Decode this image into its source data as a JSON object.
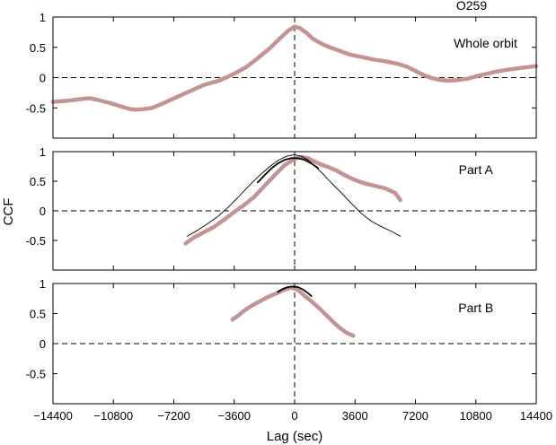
{
  "figure": {
    "title": "O259",
    "xlabel": "Lag (sec)",
    "ylabel": "CCF"
  },
  "chart_data": [
    {
      "type": "line",
      "panel_label": "Whole orbit",
      "xlim": [
        -14400,
        14400
      ],
      "ylim": [
        -1,
        1
      ],
      "xticks": [
        -14400,
        -10800,
        -7200,
        -3600,
        0,
        3600,
        7200,
        10800,
        14400
      ],
      "yticks": [
        -0.5,
        0,
        0.5,
        1
      ],
      "ytick_labels": [
        "-0.5",
        "0",
        "0.5",
        "1"
      ],
      "grid": false,
      "zero_lines": true,
      "series": [
        {
          "color": "#c49494",
          "style": "thick",
          "x": [
            -14400,
            -13500,
            -12600,
            -12200,
            -11700,
            -11000,
            -10300,
            -9800,
            -9500,
            -9000,
            -8500,
            -7800,
            -7000,
            -6200,
            -5400,
            -4500,
            -3700,
            -2900,
            -2200,
            -1500,
            -900,
            -400,
            0,
            300,
            700,
            1100,
            1600,
            2100,
            2700,
            3300,
            4000,
            4700,
            5400,
            6100,
            6700,
            7200,
            7700,
            8200,
            8700,
            9200,
            9700,
            10300,
            10800,
            11400,
            12000,
            12700,
            13500,
            14400
          ],
          "y": [
            -0.4,
            -0.38,
            -0.35,
            -0.34,
            -0.37,
            -0.42,
            -0.48,
            -0.52,
            -0.53,
            -0.52,
            -0.5,
            -0.42,
            -0.32,
            -0.22,
            -0.12,
            -0.05,
            0.05,
            0.17,
            0.32,
            0.48,
            0.64,
            0.77,
            0.84,
            0.82,
            0.74,
            0.64,
            0.56,
            0.5,
            0.44,
            0.38,
            0.34,
            0.3,
            0.27,
            0.23,
            0.18,
            0.11,
            0.04,
            -0.01,
            -0.04,
            -0.05,
            -0.04,
            -0.02,
            0.02,
            0.06,
            0.1,
            0.13,
            0.16,
            0.19
          ]
        }
      ]
    },
    {
      "type": "line",
      "panel_label": "Part A",
      "xlim": [
        -14400,
        14400
      ],
      "ylim": [
        -1,
        1
      ],
      "xticks": [
        -14400,
        -10800,
        -7200,
        -3600,
        0,
        3600,
        7200,
        10800,
        14400
      ],
      "yticks": [
        -0.5,
        0,
        0.5,
        1
      ],
      "ytick_labels": [
        "-0.5",
        "0",
        "0.5",
        "1"
      ],
      "grid": false,
      "zero_lines": true,
      "series": [
        {
          "color": "#c49494",
          "style": "thick",
          "x": [
            -6500,
            -6000,
            -5400,
            -4800,
            -4200,
            -3600,
            -3000,
            -2400,
            -1800,
            -1200,
            -600,
            0,
            400,
            800,
            1200,
            1600,
            2000,
            2500,
            3000,
            3600,
            4200,
            4800,
            5400,
            6000,
            6300
          ],
          "y": [
            -0.55,
            -0.45,
            -0.36,
            -0.27,
            -0.15,
            -0.02,
            0.1,
            0.24,
            0.42,
            0.6,
            0.77,
            0.88,
            0.91,
            0.89,
            0.83,
            0.78,
            0.74,
            0.68,
            0.6,
            0.52,
            0.46,
            0.42,
            0.38,
            0.3,
            0.18
          ]
        },
        {
          "color": "#000000",
          "style": "thin",
          "x": [
            -6400,
            -5800,
            -5200,
            -4600,
            -4000,
            -3400,
            -2800,
            -2200,
            -1600,
            -1000,
            -500,
            0,
            400,
            800,
            1200,
            1700,
            2200,
            2800,
            3400,
            4000,
            4600,
            5200,
            5800,
            6300
          ],
          "y": [
            -0.43,
            -0.33,
            -0.22,
            -0.1,
            0.05,
            0.22,
            0.4,
            0.57,
            0.72,
            0.85,
            0.92,
            0.95,
            0.92,
            0.86,
            0.76,
            0.62,
            0.47,
            0.3,
            0.12,
            -0.05,
            -0.18,
            -0.27,
            -0.35,
            -0.43
          ]
        },
        {
          "color": "#000000",
          "style": "fit",
          "x": [
            -2200,
            -1800,
            -1400,
            -1000,
            -600,
            -200,
            200,
            600,
            1000,
            1400
          ],
          "y": [
            0.48,
            0.6,
            0.71,
            0.8,
            0.86,
            0.89,
            0.89,
            0.86,
            0.8,
            0.72
          ]
        }
      ]
    },
    {
      "type": "line",
      "panel_label": "Part B",
      "xlim": [
        -14400,
        14400
      ],
      "ylim": [
        -1,
        1
      ],
      "xticks": [
        -14400,
        -10800,
        -7200,
        -3600,
        0,
        3600,
        7200,
        10800,
        14400
      ],
      "xtick_labels": [
        "−14400",
        "−10800",
        "−7200",
        "−3600",
        "0",
        "3600",
        "7200",
        "10800",
        "14400"
      ],
      "yticks": [
        -0.5,
        0,
        0.5,
        1
      ],
      "ytick_labels": [
        "-0.5",
        "0",
        "0.5",
        "1"
      ],
      "grid": false,
      "zero_lines": true,
      "series": [
        {
          "color": "#c49494",
          "style": "thick",
          "x": [
            -3700,
            -3300,
            -2900,
            -2500,
            -2100,
            -1700,
            -1300,
            -900,
            -500,
            -200,
            0,
            300,
            700,
            1100,
            1500,
            1900,
            2300,
            2700,
            3100,
            3500
          ],
          "y": [
            0.4,
            0.48,
            0.57,
            0.64,
            0.7,
            0.76,
            0.81,
            0.86,
            0.91,
            0.93,
            0.92,
            0.87,
            0.77,
            0.68,
            0.58,
            0.47,
            0.36,
            0.26,
            0.18,
            0.13
          ]
        },
        {
          "color": "#000000",
          "style": "fit",
          "x": [
            -1000,
            -700,
            -400,
            -100,
            200,
            500,
            800,
            1000
          ],
          "y": [
            0.86,
            0.91,
            0.94,
            0.95,
            0.94,
            0.9,
            0.84,
            0.79
          ]
        }
      ]
    }
  ]
}
